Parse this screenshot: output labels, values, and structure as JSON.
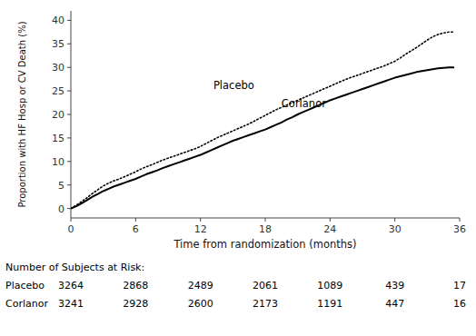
{
  "chart_data": {
    "type": "line",
    "xlabel": "Time from randomization (months)",
    "ylabel": "Proportion with HF Hosp or CV Death (%)",
    "x": [
      0,
      0.5,
      1,
      1.5,
      2,
      2.5,
      3,
      3.5,
      4,
      4.5,
      5,
      5.5,
      6,
      6.5,
      7,
      7.5,
      8,
      8.5,
      9,
      9.5,
      10,
      10.5,
      11,
      11.5,
      12,
      12.5,
      13,
      13.5,
      14,
      14.5,
      15,
      15.5,
      16,
      16.5,
      17,
      17.5,
      18,
      18.5,
      19,
      19.5,
      20,
      20.5,
      21,
      21.5,
      22,
      22.5,
      23,
      23.5,
      24,
      24.5,
      25,
      25.5,
      26,
      26.5,
      27,
      27.5,
      28,
      28.5,
      29,
      29.5,
      30,
      30.5,
      31,
      31.5,
      32,
      32.5,
      33,
      33.5,
      34,
      34.5,
      35,
      35.5
    ],
    "series": [
      {
        "name": "Placebo",
        "color": "#000000",
        "line_style": "dotted",
        "values": [
          0,
          0.7,
          1.5,
          2.3,
          3.2,
          4.0,
          4.8,
          5.4,
          5.9,
          6.3,
          6.8,
          7.3,
          7.8,
          8.4,
          8.9,
          9.3,
          9.8,
          10.3,
          10.7,
          11.1,
          11.5,
          11.9,
          12.3,
          12.7,
          13.2,
          13.8,
          14.4,
          15.0,
          15.5,
          16.0,
          16.5,
          17.0,
          17.5,
          18.0,
          18.6,
          19.2,
          19.8,
          20.4,
          21.0,
          21.5,
          22.0,
          22.5,
          23.0,
          23.5,
          24.0,
          24.5,
          25.0,
          25.5,
          26.0,
          26.5,
          27.0,
          27.5,
          27.9,
          28.3,
          28.7,
          29.1,
          29.5,
          29.9,
          30.3,
          30.8,
          31.3,
          32.0,
          32.8,
          33.5,
          34.2,
          35.0,
          35.8,
          36.5,
          37.0,
          37.3,
          37.5,
          37.5
        ]
      },
      {
        "name": "Corlanor",
        "color": "#000000",
        "line_style": "solid",
        "values": [
          0,
          0.5,
          1.1,
          1.8,
          2.5,
          3.1,
          3.7,
          4.2,
          4.7,
          5.1,
          5.5,
          5.9,
          6.3,
          6.8,
          7.3,
          7.7,
          8.1,
          8.6,
          9.0,
          9.4,
          9.8,
          10.2,
          10.6,
          11.0,
          11.4,
          11.9,
          12.4,
          12.9,
          13.4,
          13.9,
          14.4,
          14.8,
          15.2,
          15.6,
          16.0,
          16.4,
          16.8,
          17.3,
          17.8,
          18.3,
          18.9,
          19.4,
          20.0,
          20.5,
          21.0,
          21.5,
          22.0,
          22.5,
          23.0,
          23.4,
          23.8,
          24.2,
          24.6,
          25.0,
          25.4,
          25.8,
          26.2,
          26.6,
          27.0,
          27.4,
          27.8,
          28.1,
          28.4,
          28.7,
          29.0,
          29.2,
          29.4,
          29.6,
          29.8,
          29.9,
          30.0,
          30.0
        ]
      }
    ],
    "annotations": [
      {
        "text": "Placebo",
        "x": 13.2,
        "y": 25.5
      },
      {
        "text": "Corlanor",
        "x": 19.5,
        "y": 21.5
      }
    ],
    "xlim": [
      0,
      36
    ],
    "ylim": [
      -2,
      42
    ],
    "xticks": [
      0,
      6,
      12,
      18,
      24,
      30,
      36
    ],
    "yticks": [
      0,
      5,
      10,
      15,
      20,
      25,
      30,
      35,
      40
    ],
    "grid": false,
    "risk_table": {
      "title": "Number of Subjects at Risk:",
      "x": [
        0,
        6,
        12,
        18,
        24,
        30,
        36
      ],
      "rows": [
        {
          "name": "Placebo",
          "values": [
            3264,
            2868,
            2489,
            2061,
            1089,
            439,
            17
          ]
        },
        {
          "name": "Corlanor",
          "values": [
            3241,
            2928,
            2600,
            2173,
            1191,
            447,
            16
          ]
        }
      ]
    }
  }
}
